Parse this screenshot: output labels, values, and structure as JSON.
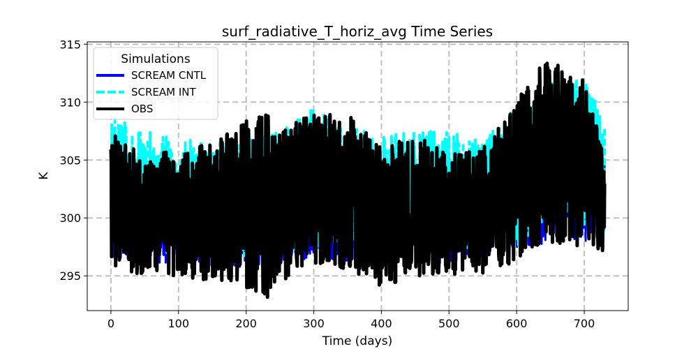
{
  "chart_data": {
    "type": "line",
    "title": "surf_radiative_T_horiz_avg Time Series",
    "xlabel": "Time (days)",
    "ylabel": "K",
    "xlim": [
      -35,
      765
    ],
    "ylim": [
      292,
      315.2
    ],
    "x_ticks": [
      0,
      100,
      200,
      300,
      400,
      500,
      600,
      700
    ],
    "y_ticks": [
      295,
      300,
      305,
      310,
      315
    ],
    "grid": true,
    "legend": {
      "title": "Simulations",
      "placement": "top-left"
    },
    "x_range": [
      0,
      730
    ],
    "series": [
      {
        "name": "SCREAM CNTL",
        "color": "#0000ff",
        "style": "solid",
        "envelope": [
          {
            "x": 0,
            "low": 296.5,
            "high": 302.5
          },
          {
            "x": 100,
            "low": 296.0,
            "high": 303.5
          },
          {
            "x": 200,
            "low": 295.5,
            "high": 303.0
          },
          {
            "x": 300,
            "low": 296.5,
            "high": 304.0
          },
          {
            "x": 400,
            "low": 296.0,
            "high": 303.5
          },
          {
            "x": 500,
            "low": 296.0,
            "high": 303.5
          },
          {
            "x": 600,
            "low": 297.5,
            "high": 306.0
          },
          {
            "x": 700,
            "low": 298.0,
            "high": 307.0
          },
          {
            "x": 730,
            "low": 298.0,
            "high": 305.0
          }
        ]
      },
      {
        "name": "SCREAM INT",
        "color": "#00ffff",
        "style": "dashed",
        "envelope": [
          {
            "x": 0,
            "low": 297.0,
            "high": 309.0
          },
          {
            "x": 50,
            "low": 297.0,
            "high": 307.5
          },
          {
            "x": 100,
            "low": 297.0,
            "high": 307.0
          },
          {
            "x": 150,
            "low": 296.5,
            "high": 306.5
          },
          {
            "x": 200,
            "low": 296.5,
            "high": 307.5
          },
          {
            "x": 250,
            "low": 297.0,
            "high": 307.5
          },
          {
            "x": 300,
            "low": 297.5,
            "high": 309.5
          },
          {
            "x": 350,
            "low": 297.5,
            "high": 308.0
          },
          {
            "x": 400,
            "low": 297.0,
            "high": 307.0
          },
          {
            "x": 450,
            "low": 297.0,
            "high": 307.5
          },
          {
            "x": 500,
            "low": 297.0,
            "high": 307.5
          },
          {
            "x": 550,
            "low": 297.0,
            "high": 307.0
          },
          {
            "x": 600,
            "low": 297.5,
            "high": 309.5
          },
          {
            "x": 650,
            "low": 299.5,
            "high": 312.0
          },
          {
            "x": 700,
            "low": 299.0,
            "high": 312.5
          },
          {
            "x": 730,
            "low": 298.5,
            "high": 308.0
          }
        ]
      },
      {
        "name": "OBS",
        "color": "#000000",
        "style": "solid",
        "envelope": [
          {
            "x": 0,
            "low": 295.5,
            "high": 307.5
          },
          {
            "x": 50,
            "low": 295.0,
            "high": 305.5
          },
          {
            "x": 100,
            "low": 295.0,
            "high": 306.0
          },
          {
            "x": 150,
            "low": 294.5,
            "high": 306.5
          },
          {
            "x": 200,
            "low": 294.0,
            "high": 308.5
          },
          {
            "x": 230,
            "low": 293.0,
            "high": 309.0
          },
          {
            "x": 250,
            "low": 294.5,
            "high": 308.0
          },
          {
            "x": 300,
            "low": 296.0,
            "high": 309.0
          },
          {
            "x": 350,
            "low": 295.5,
            "high": 309.0
          },
          {
            "x": 400,
            "low": 294.0,
            "high": 306.0
          },
          {
            "x": 450,
            "low": 295.0,
            "high": 307.5
          },
          {
            "x": 500,
            "low": 295.0,
            "high": 305.5
          },
          {
            "x": 550,
            "low": 295.0,
            "high": 306.0
          },
          {
            "x": 600,
            "low": 296.0,
            "high": 310.0
          },
          {
            "x": 640,
            "low": 298.0,
            "high": 314.0
          },
          {
            "x": 700,
            "low": 297.5,
            "high": 312.0
          },
          {
            "x": 730,
            "low": 297.0,
            "high": 305.5
          }
        ]
      }
    ]
  }
}
